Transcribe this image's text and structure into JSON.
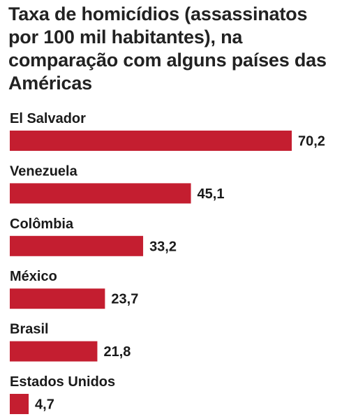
{
  "chart_data": {
    "type": "bar",
    "orientation": "horizontal",
    "title": "Taxa de homicídios (assassinatos por 100 mil habitantes), na comparação com alguns países das Américas",
    "categories": [
      "El Salvador",
      "Venezuela",
      "Colômbia",
      "México",
      "Brasil",
      "Estados Unidos"
    ],
    "values": [
      70.2,
      45.1,
      33.2,
      23.7,
      21.8,
      4.7
    ],
    "value_labels": [
      "70,2",
      "45,1",
      "33,2",
      "23,7",
      "21,8",
      "4,7"
    ],
    "xlabel": "",
    "ylabel": "",
    "xlim": [
      0,
      70.2
    ],
    "grid": false,
    "legend": "none",
    "bar_color": "#c41e30"
  }
}
